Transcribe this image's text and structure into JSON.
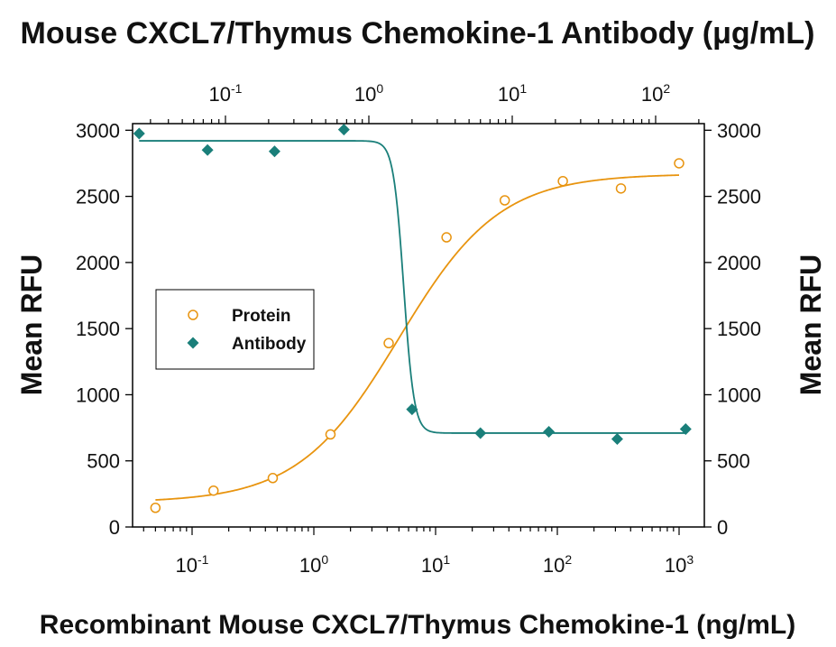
{
  "chart_data": {
    "type": "scatter",
    "title": "Mouse CXCL7/Thymus Chemokine-1 Antibody (μg/mL)",
    "xlabel": "Recombinant Mouse CXCL7/Thymus Chemokine-1 (ng/mL)",
    "ylabel_left": "Mean RFU",
    "ylabel_right": "Mean RFU",
    "ylim": [
      0,
      3050
    ],
    "y_ticks": [
      "0",
      "500",
      "1000",
      "1500",
      "2000",
      "2500",
      "3000"
    ],
    "x_scale": "log",
    "x_ticks": [
      {
        "base": "10",
        "exp": "-1"
      },
      {
        "base": "10",
        "exp": "0"
      },
      {
        "base": "10",
        "exp": "1"
      },
      {
        "base": "10",
        "exp": "2"
      },
      {
        "base": "10",
        "exp": "3"
      }
    ],
    "top_x_ticks": [
      {
        "base": "10",
        "exp": "-1"
      },
      {
        "base": "10",
        "exp": "0"
      },
      {
        "base": "10",
        "exp": "1"
      },
      {
        "base": "10",
        "exp": "2"
      }
    ],
    "grid": false,
    "legend_position": "left-middle",
    "series": [
      {
        "name": "Protein",
        "axis": "bottom",
        "marker": "open-circle",
        "color": "#E8940F",
        "x": [
          0.05,
          0.15,
          0.46,
          1.37,
          4.12,
          12.3,
          37,
          111,
          333,
          1000
        ],
        "y": [
          145,
          275,
          370,
          700,
          1390,
          2190,
          2470,
          2615,
          2560,
          2750
        ],
        "fit": {
          "bottom": 185,
          "top": 2670,
          "ec50": 5.0,
          "hill": 1.05
        }
      },
      {
        "name": "Antibody",
        "axis": "top",
        "marker": "filled-diamond",
        "color": "#1A7F7A",
        "x": [
          0.025,
          0.075,
          0.22,
          0.67,
          2.0,
          6.0,
          18,
          54,
          162
        ],
        "y": [
          2975,
          2850,
          2840,
          3005,
          890,
          710,
          720,
          665,
          740
        ],
        "fit": {
          "bottom": 710,
          "top": 2920,
          "ec50": 1.75,
          "hill": 12
        }
      }
    ]
  }
}
